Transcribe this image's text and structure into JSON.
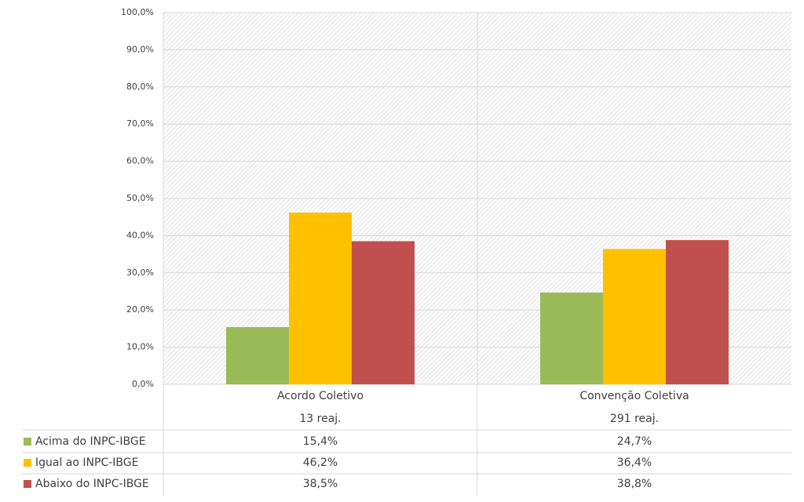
{
  "chart_data": {
    "type": "bar",
    "categories": [
      "Acordo Coletivo",
      "Convenção Coletiva"
    ],
    "category_notes": [
      "13 reaj.",
      "291 reaj."
    ],
    "series": [
      {
        "name": "Acima do INPC-IBGE",
        "color": "#9bbb59",
        "values": [
          15.4,
          24.7
        ],
        "value_labels": [
          "15,4%",
          "24,7%"
        ]
      },
      {
        "name": "Igual ao INPC-IBGE",
        "color": "#ffc000",
        "values": [
          46.2,
          36.4
        ],
        "value_labels": [
          "46,2%",
          "36,4%"
        ]
      },
      {
        "name": "Abaixo do INPC-IBGE",
        "color": "#c0504d",
        "values": [
          38.5,
          38.8
        ],
        "value_labels": [
          "38,5%",
          "38,8%"
        ]
      }
    ],
    "ylim": [
      0,
      100
    ],
    "yticks": [
      {
        "value": 0,
        "label": "0,0%"
      },
      {
        "value": 10,
        "label": "10,0%"
      },
      {
        "value": 20,
        "label": "20,0%"
      },
      {
        "value": 30,
        "label": "30,0%"
      },
      {
        "value": 40,
        "label": "40,0%"
      },
      {
        "value": 50,
        "label": "50,0%"
      },
      {
        "value": 60,
        "label": "60,0%"
      },
      {
        "value": 70,
        "label": "70,0%"
      },
      {
        "value": 80,
        "label": "80,0%"
      },
      {
        "value": 90,
        "label": "90,0%"
      },
      {
        "value": 100,
        "label": "100,0%"
      }
    ],
    "grid": true
  }
}
